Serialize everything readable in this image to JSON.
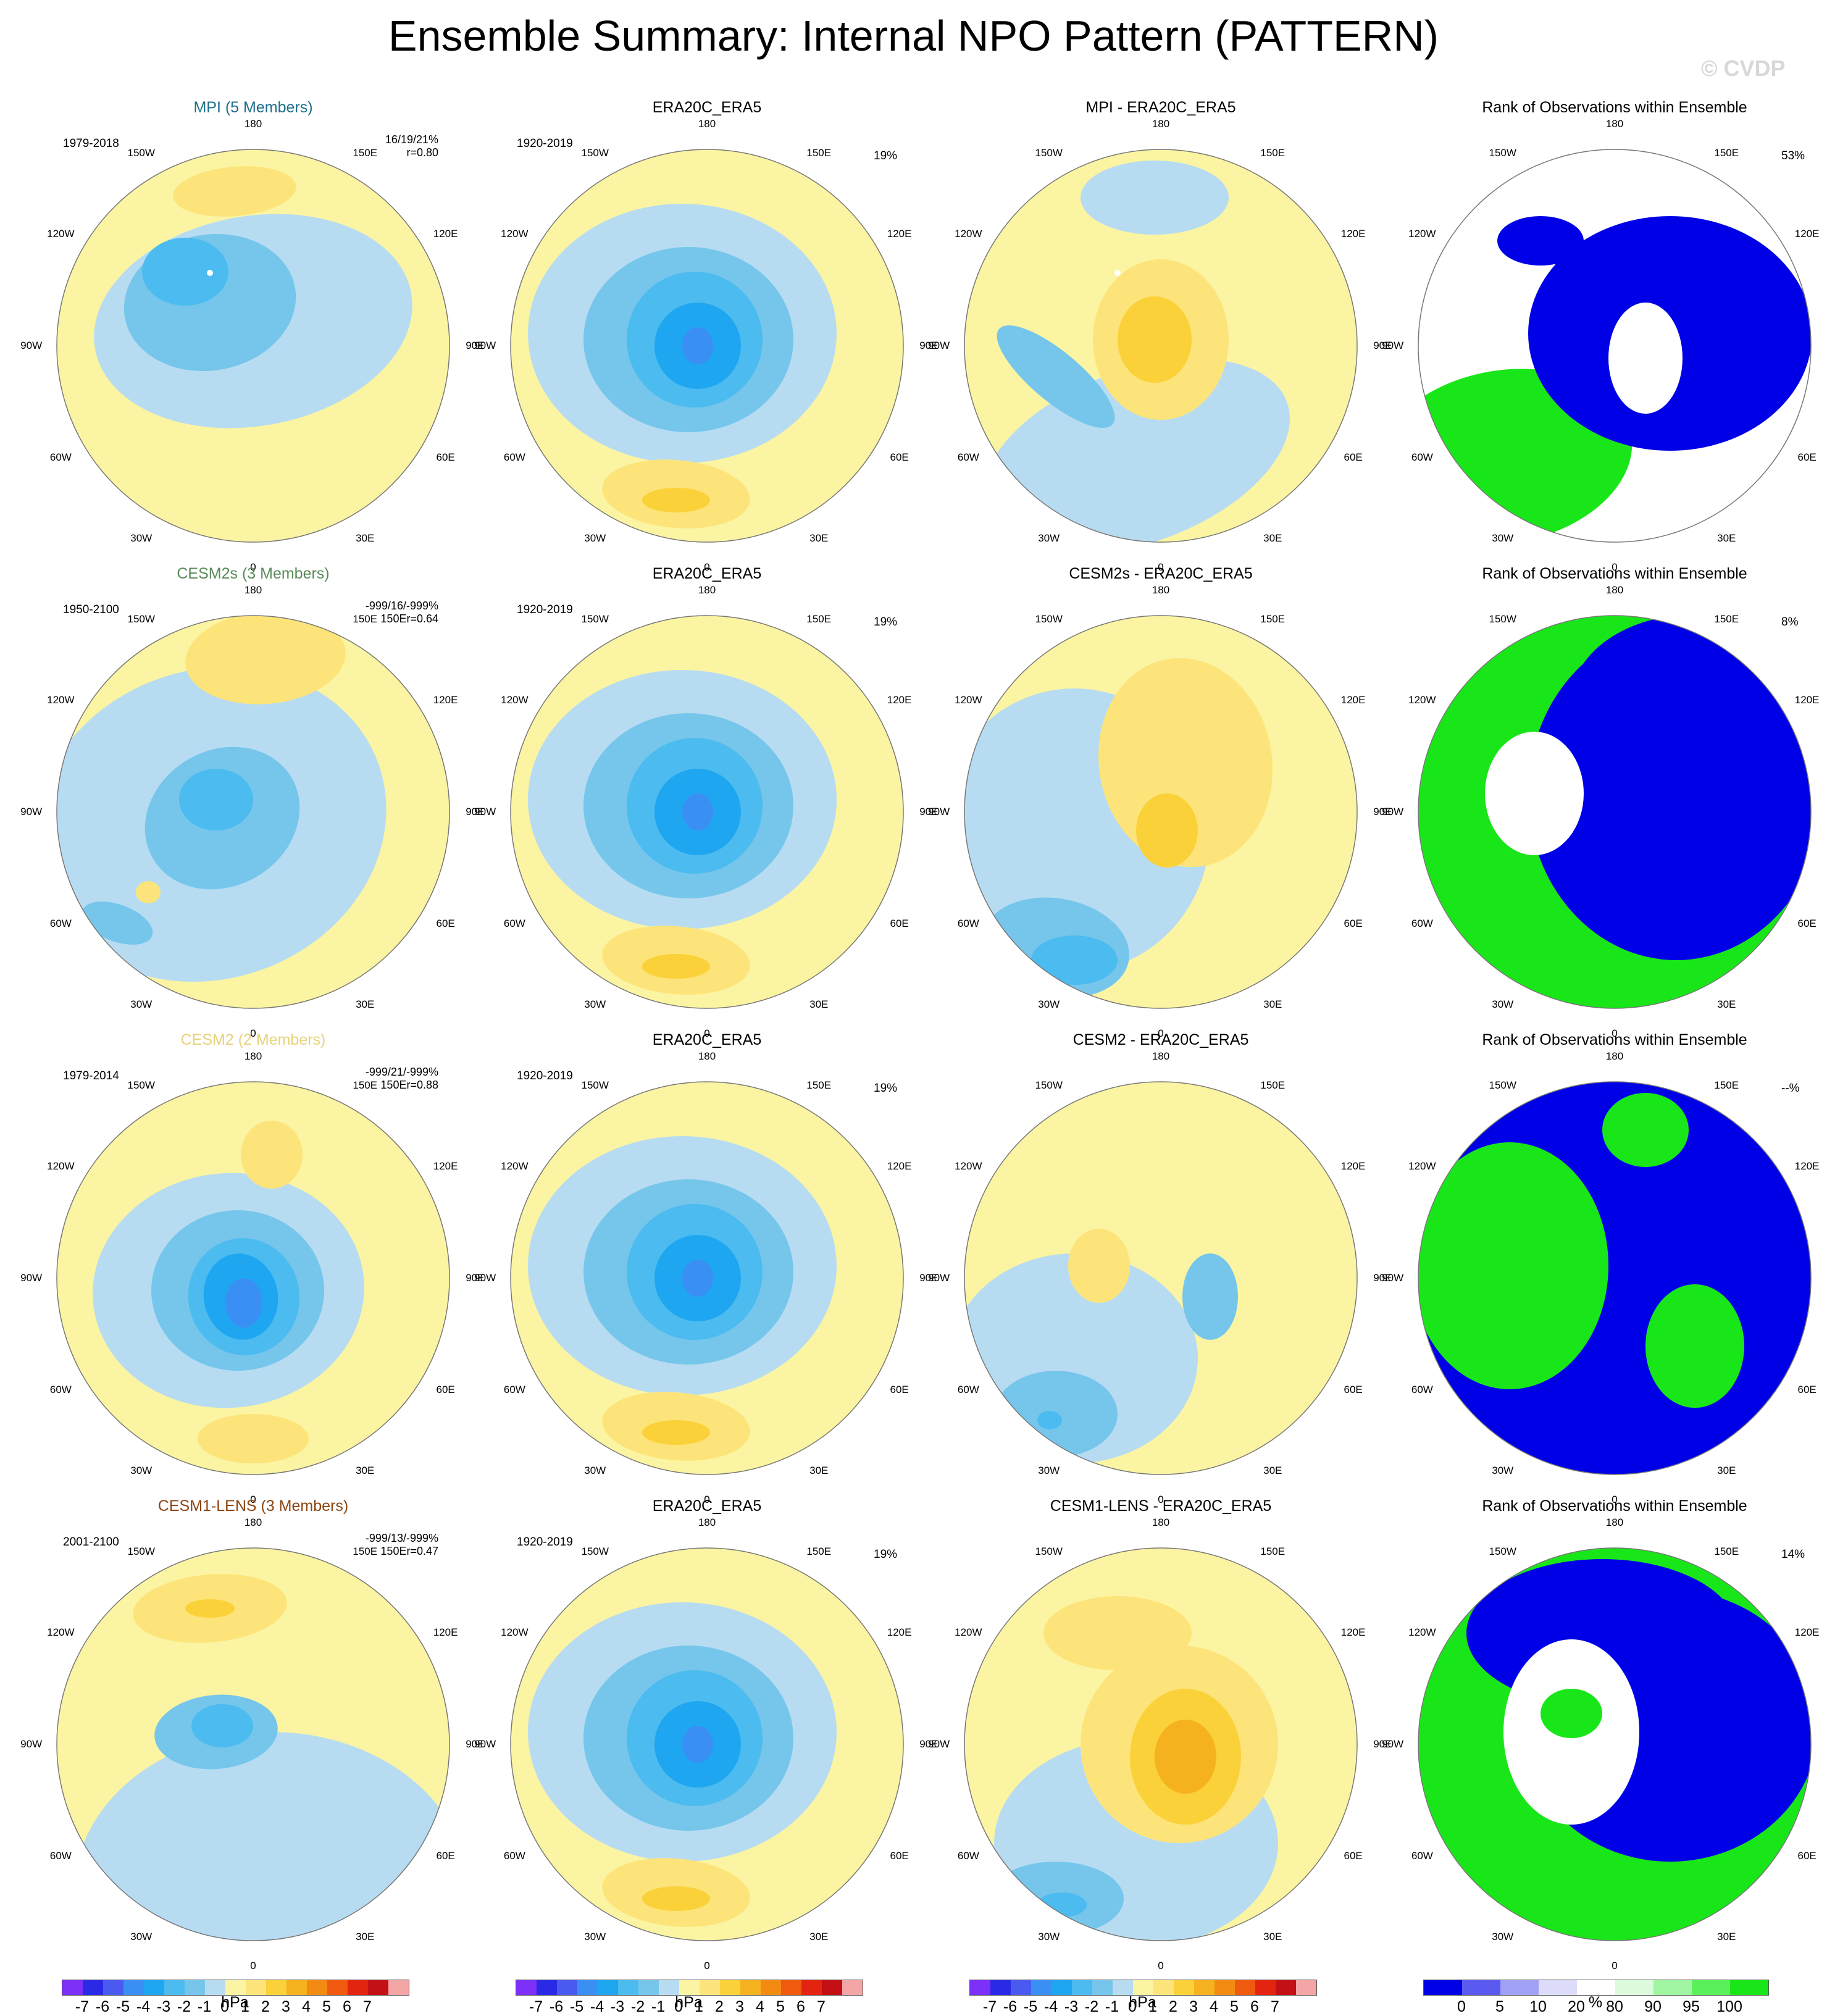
{
  "title": "Ensemble Summary: Internal NPO Pattern (PATTERN)",
  "watermark": "© CVDP",
  "lon_labels": [
    "180",
    "150E",
    "120E",
    "90E",
    "60E",
    "30E",
    "0",
    "30W",
    "60W",
    "90W",
    "120W",
    "150W"
  ],
  "colors": {
    "neg7": "#7b2ff7",
    "neg6": "#2a2ae6",
    "neg5": "#4a5af0",
    "neg4": "#3a8ff5",
    "neg3": "#1ea6f0",
    "neg2": "#4cbbef",
    "neg1": "#76c6ec",
    "neg0": "#b7dcf2",
    "pos0": "#fbf4a2",
    "pos1": "#fde47a",
    "pos2": "#fbd13a",
    "pos3": "#f6b21e",
    "pos4": "#f38b12",
    "pos5": "#ef5a0e",
    "pos6": "#e32410",
    "pos7": "#c40f14",
    "pos8": "#f4a5a5",
    "rank_blue": "#0000e6",
    "rank_green": "#19e619",
    "rank_white": "#ffffff",
    "mpi_title": "#1f6f8b",
    "cesm2s_title": "#5a8a5a",
    "cesm2_title": "#e6d27a",
    "cesm1_title": "#8b4513"
  },
  "rows": [
    {
      "model": {
        "title": "MPI (5 Members)",
        "period": "1979-2018",
        "stats1": "16/19/21%",
        "stats2": "r=0.80"
      },
      "obs": {
        "title": "ERA20C_ERA5",
        "period": "1920-2019",
        "pct": "19%"
      },
      "diff": {
        "title": "MPI - ERA20C_ERA5"
      },
      "rank": {
        "title": "Rank of Observations within Ensemble",
        "pct": "53%"
      }
    },
    {
      "model": {
        "title": "CESM2s (3 Members)",
        "period": "1950-2100",
        "stats1": "-999/16/-999%",
        "stats2": "150Er=0.64"
      },
      "obs": {
        "title": "ERA20C_ERA5",
        "period": "1920-2019",
        "pct": "19%"
      },
      "diff": {
        "title": "CESM2s - ERA20C_ERA5"
      },
      "rank": {
        "title": "Rank of Observations within Ensemble",
        "pct": "8%"
      }
    },
    {
      "model": {
        "title": "CESM2 (2 Members)",
        "period": "1979-2014",
        "stats1": "-999/21/-999%",
        "stats2": "150Er=0.88"
      },
      "obs": {
        "title": "ERA20C_ERA5",
        "period": "1920-2019",
        "pct": "19%"
      },
      "diff": {
        "title": "CESM2 - ERA20C_ERA5"
      },
      "rank": {
        "title": "Rank of Observations within Ensemble",
        "pct": "--%"
      }
    },
    {
      "model": {
        "title": "CESM1-LENS (3 Members)",
        "period": "2001-2100",
        "stats1": "-999/13/-999%",
        "stats2": "150Er=0.47"
      },
      "obs": {
        "title": "ERA20C_ERA5",
        "period": "1920-2019",
        "pct": "19%"
      },
      "diff": {
        "title": "CESM1-LENS - ERA20C_ERA5"
      },
      "rank": {
        "title": "Rank of Observations within Ensemble",
        "pct": "14%"
      }
    }
  ],
  "legend_hpa": {
    "ticks": [
      "-7",
      "-6",
      "-5",
      "-4",
      "-3",
      "-2",
      "-1",
      "0",
      "1",
      "2",
      "3",
      "4",
      "5",
      "6",
      "7"
    ],
    "units": "hPa"
  },
  "legend_rank": {
    "ticks": [
      "0",
      "5",
      "10",
      "20",
      "80",
      "90",
      "95",
      "100"
    ],
    "units": "%"
  }
}
